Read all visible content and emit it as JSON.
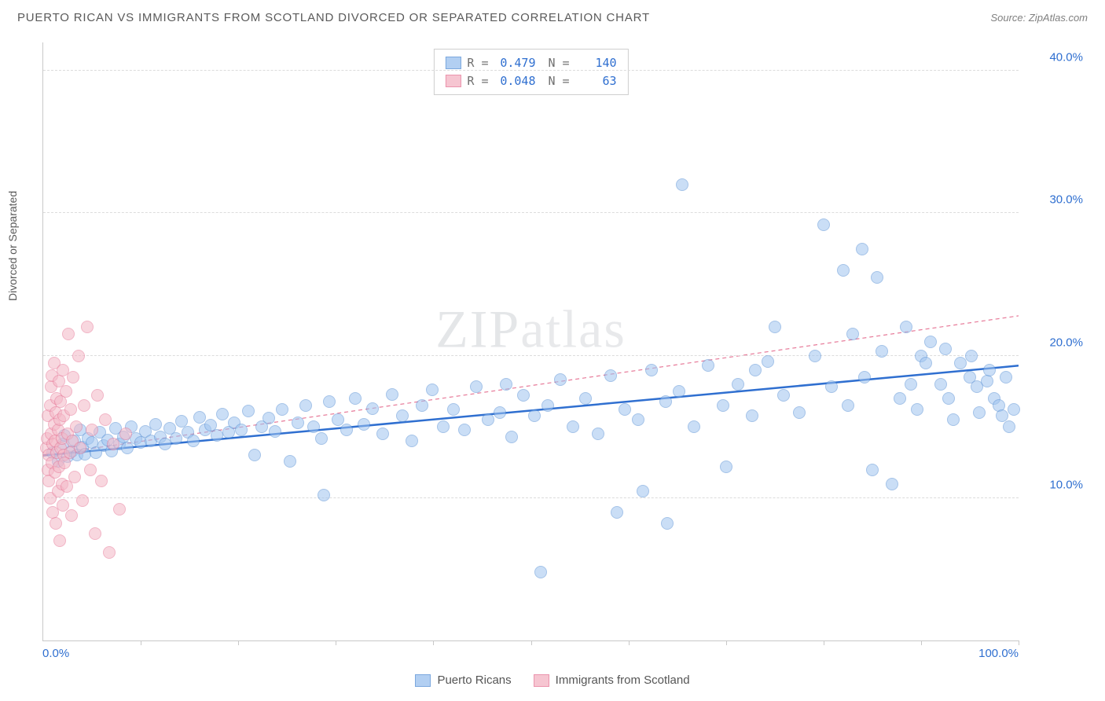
{
  "title": "PUERTO RICAN VS IMMIGRANTS FROM SCOTLAND DIVORCED OR SEPARATED CORRELATION CHART",
  "source": "Source: ZipAtlas.com",
  "watermark": {
    "bold": "ZIP",
    "thin": "atlas"
  },
  "ylabel": "Divorced or Separated",
  "chart": {
    "type": "scatter",
    "background_color": "#ffffff",
    "grid_color": "#dcdcdc",
    "axis_color": "#c8c8c8",
    "xlim": [
      0,
      100
    ],
    "ylim": [
      0,
      42
    ],
    "y_ticks": [
      {
        "v": 10,
        "label": "10.0%"
      },
      {
        "v": 20,
        "label": "20.0%"
      },
      {
        "v": 30,
        "label": "30.0%"
      },
      {
        "v": 40,
        "label": "40.0%"
      }
    ],
    "x_tick_marks": [
      10,
      20,
      30,
      40,
      50,
      60,
      70,
      80,
      90,
      100
    ],
    "x_end_labels": {
      "min": "0.0%",
      "max": "100.0%"
    },
    "x_label_color": "#2f6fd0",
    "y_label_color": "#2f6fd0",
    "marker_radius": 8,
    "marker_stroke_width": 1,
    "series": [
      {
        "id": "pr",
        "label": "Puerto Ricans",
        "fill": "#9fc4ef",
        "stroke": "#5c93d6",
        "fill_opacity": 0.55,
        "trend": {
          "type": "solid",
          "color": "#2f6fd0",
          "width": 2.5,
          "y_at_x0": 13.0,
          "y_at_x100": 19.3
        },
        "stats": {
          "R": "0.479",
          "N": "140"
        },
        "points": [
          [
            1,
            13.2
          ],
          [
            1.5,
            12.6
          ],
          [
            2,
            13.8
          ],
          [
            2.2,
            14.4
          ],
          [
            2.5,
            12.9
          ],
          [
            3,
            13.3
          ],
          [
            3.2,
            14.0
          ],
          [
            3.5,
            13.0
          ],
          [
            3.8,
            14.8
          ],
          [
            4,
            13.6
          ],
          [
            4.3,
            13.1
          ],
          [
            4.6,
            14.2
          ],
          [
            5,
            13.9
          ],
          [
            5.4,
            13.2
          ],
          [
            5.8,
            14.6
          ],
          [
            6.2,
            13.7
          ],
          [
            6.6,
            14.1
          ],
          [
            7,
            13.3
          ],
          [
            7.4,
            14.9
          ],
          [
            7.8,
            13.8
          ],
          [
            8.2,
            14.3
          ],
          [
            8.6,
            13.5
          ],
          [
            9,
            15.0
          ],
          [
            9.5,
            14.2
          ],
          [
            10,
            13.9
          ],
          [
            10.5,
            14.7
          ],
          [
            11,
            14.0
          ],
          [
            11.5,
            15.2
          ],
          [
            12,
            14.3
          ],
          [
            12.5,
            13.8
          ],
          [
            13,
            14.9
          ],
          [
            13.6,
            14.2
          ],
          [
            14.2,
            15.4
          ],
          [
            14.8,
            14.6
          ],
          [
            15.4,
            14.0
          ],
          [
            16,
            15.7
          ],
          [
            16.6,
            14.8
          ],
          [
            17.2,
            15.1
          ],
          [
            17.8,
            14.4
          ],
          [
            18.4,
            15.9
          ],
          [
            19,
            14.6
          ],
          [
            19.6,
            15.3
          ],
          [
            20.3,
            14.8
          ],
          [
            21,
            16.1
          ],
          [
            21.7,
            13.0
          ],
          [
            22.4,
            15.0
          ],
          [
            23.1,
            15.6
          ],
          [
            23.8,
            14.7
          ],
          [
            24.5,
            16.2
          ],
          [
            25.3,
            12.6
          ],
          [
            26.1,
            15.3
          ],
          [
            26.9,
            16.5
          ],
          [
            27.7,
            15.0
          ],
          [
            28.5,
            14.2
          ],
          [
            28.8,
            10.2
          ],
          [
            29.3,
            16.8
          ],
          [
            30.2,
            15.5
          ],
          [
            31.1,
            14.8
          ],
          [
            32,
            17.0
          ],
          [
            32.9,
            15.2
          ],
          [
            33.8,
            16.3
          ],
          [
            34.8,
            14.5
          ],
          [
            35.8,
            17.3
          ],
          [
            36.8,
            15.8
          ],
          [
            37.8,
            14.0
          ],
          [
            38.8,
            16.5
          ],
          [
            39.9,
            17.6
          ],
          [
            41,
            15.0
          ],
          [
            42.1,
            16.2
          ],
          [
            43.2,
            14.8
          ],
          [
            44.4,
            17.8
          ],
          [
            45.6,
            15.5
          ],
          [
            46.8,
            16.0
          ],
          [
            47.5,
            18.0
          ],
          [
            48,
            14.3
          ],
          [
            49.2,
            17.2
          ],
          [
            50.4,
            15.8
          ],
          [
            51,
            4.8
          ],
          [
            51.7,
            16.5
          ],
          [
            53,
            18.3
          ],
          [
            54.3,
            15.0
          ],
          [
            55.6,
            17.0
          ],
          [
            56.9,
            14.5
          ],
          [
            58.2,
            18.6
          ],
          [
            58.8,
            9.0
          ],
          [
            59.6,
            16.2
          ],
          [
            61,
            15.5
          ],
          [
            61.5,
            10.5
          ],
          [
            62.4,
            19.0
          ],
          [
            63.8,
            16.8
          ],
          [
            64,
            8.2
          ],
          [
            65.2,
            17.5
          ],
          [
            65.5,
            32.0
          ],
          [
            66.7,
            15.0
          ],
          [
            68.2,
            19.3
          ],
          [
            69.7,
            16.5
          ],
          [
            70,
            12.2
          ],
          [
            71.2,
            18.0
          ],
          [
            72.7,
            15.8
          ],
          [
            73,
            19.0
          ],
          [
            74.3,
            19.6
          ],
          [
            75,
            22.0
          ],
          [
            75.9,
            17.2
          ],
          [
            77.5,
            16.0
          ],
          [
            79.1,
            20.0
          ],
          [
            80,
            29.2
          ],
          [
            80.8,
            17.8
          ],
          [
            82,
            26.0
          ],
          [
            82.5,
            16.5
          ],
          [
            83,
            21.5
          ],
          [
            84,
            27.5
          ],
          [
            84.2,
            18.5
          ],
          [
            85,
            12.0
          ],
          [
            85.5,
            25.5
          ],
          [
            86,
            20.3
          ],
          [
            87,
            11.0
          ],
          [
            87.8,
            17.0
          ],
          [
            88.5,
            22.0
          ],
          [
            89,
            18.0
          ],
          [
            89.6,
            16.2
          ],
          [
            90,
            20.0
          ],
          [
            90.5,
            19.5
          ],
          [
            91,
            21.0
          ],
          [
            92,
            18.0
          ],
          [
            92.5,
            20.5
          ],
          [
            92.8,
            17.0
          ],
          [
            93.3,
            15.5
          ],
          [
            94,
            19.5
          ],
          [
            95,
            18.5
          ],
          [
            95.2,
            20.0
          ],
          [
            95.7,
            17.8
          ],
          [
            96,
            16.0
          ],
          [
            96.8,
            18.2
          ],
          [
            97,
            19.0
          ],
          [
            97.5,
            17.0
          ],
          [
            98,
            16.5
          ],
          [
            98.3,
            15.8
          ],
          [
            98.7,
            18.5
          ],
          [
            99,
            15.0
          ],
          [
            99.5,
            16.2
          ]
        ]
      },
      {
        "id": "scot",
        "label": "Immigrants from Scotland",
        "fill": "#f4b7c6",
        "stroke": "#e77a99",
        "fill_opacity": 0.55,
        "trend": {
          "type": "dashed",
          "color": "#e77a99",
          "width": 1.2,
          "y_at_x0": 13.0,
          "y_at_x100": 22.8
        },
        "stats": {
          "R": "0.048",
          "N": "63"
        },
        "points": [
          [
            0.3,
            13.5
          ],
          [
            0.4,
            14.2
          ],
          [
            0.5,
            12.0
          ],
          [
            0.5,
            15.8
          ],
          [
            0.6,
            13.0
          ],
          [
            0.6,
            11.2
          ],
          [
            0.7,
            16.5
          ],
          [
            0.7,
            10.0
          ],
          [
            0.8,
            14.5
          ],
          [
            0.8,
            17.8
          ],
          [
            0.9,
            12.5
          ],
          [
            0.9,
            18.6
          ],
          [
            1.0,
            13.8
          ],
          [
            1.0,
            9.0
          ],
          [
            1.1,
            15.2
          ],
          [
            1.1,
            19.5
          ],
          [
            1.2,
            11.8
          ],
          [
            1.2,
            14.0
          ],
          [
            1.3,
            16.0
          ],
          [
            1.3,
            8.2
          ],
          [
            1.4,
            13.2
          ],
          [
            1.4,
            17.0
          ],
          [
            1.5,
            10.5
          ],
          [
            1.5,
            14.8
          ],
          [
            1.6,
            18.2
          ],
          [
            1.6,
            12.2
          ],
          [
            1.7,
            15.5
          ],
          [
            1.7,
            7.0
          ],
          [
            1.8,
            13.5
          ],
          [
            1.8,
            16.8
          ],
          [
            1.9,
            11.0
          ],
          [
            1.9,
            14.2
          ],
          [
            2.0,
            19.0
          ],
          [
            2.0,
            9.5
          ],
          [
            2.1,
            13.0
          ],
          [
            2.1,
            15.8
          ],
          [
            2.2,
            12.5
          ],
          [
            2.3,
            17.5
          ],
          [
            2.4,
            10.8
          ],
          [
            2.5,
            14.5
          ],
          [
            2.6,
            21.5
          ],
          [
            2.7,
            13.2
          ],
          [
            2.8,
            16.2
          ],
          [
            2.9,
            8.8
          ],
          [
            3.0,
            14.0
          ],
          [
            3.1,
            18.5
          ],
          [
            3.2,
            11.5
          ],
          [
            3.4,
            15.0
          ],
          [
            3.6,
            20.0
          ],
          [
            3.8,
            13.5
          ],
          [
            4.0,
            9.8
          ],
          [
            4.2,
            16.5
          ],
          [
            4.5,
            22.0
          ],
          [
            4.8,
            12.0
          ],
          [
            5.0,
            14.8
          ],
          [
            5.3,
            7.5
          ],
          [
            5.6,
            17.2
          ],
          [
            6.0,
            11.2
          ],
          [
            6.4,
            15.5
          ],
          [
            6.8,
            6.2
          ],
          [
            7.2,
            13.8
          ],
          [
            7.8,
            9.2
          ],
          [
            8.5,
            14.5
          ]
        ]
      }
    ]
  },
  "stats_box": {
    "r_label": "R =",
    "n_label": "N =",
    "value_color": "#2f6fd0",
    "label_color": "#707070"
  }
}
